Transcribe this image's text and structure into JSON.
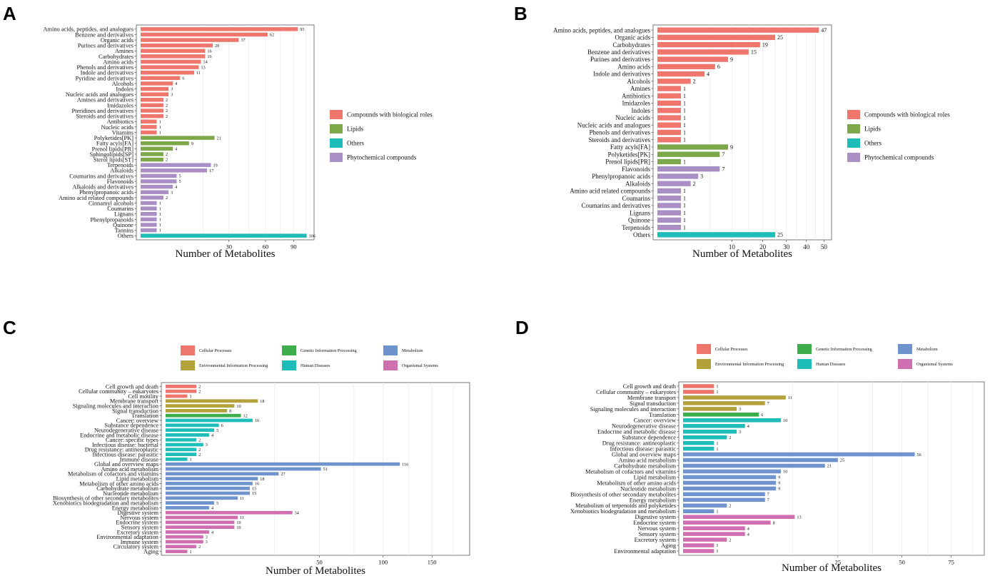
{
  "colors": {
    "compounds": "#EE766C",
    "lipids": "#7CA84A",
    "others": "#1FBDB9",
    "phyto": "#A98FC4",
    "cellular": "#EE766C",
    "environmental": "#B3A23A",
    "genetic": "#3DAE4B",
    "human": "#1FBDB9",
    "metabolism": "#6E93CD",
    "organismal": "#CF6FB0"
  },
  "chart_data": [
    {
      "panel": "A",
      "type": "bar",
      "orientation": "horizontal",
      "xlabel": "Number of Metabolites",
      "x_scale": "sqrt",
      "xlim": [
        0,
        110
      ],
      "xticks": [
        "30",
        "60",
        "90"
      ],
      "legend": [
        {
          "label": "Compounds with biological roles",
          "group": "compounds"
        },
        {
          "label": "Lipids",
          "group": "lipids"
        },
        {
          "label": "Others",
          "group": "others"
        },
        {
          "label": "Phytochemical compounds",
          "group": "phyto"
        }
      ],
      "bars": [
        {
          "label": "Amino acids, peptides, and analogues",
          "value": 95,
          "group": "compounds"
        },
        {
          "label": "Benzene and derivatives",
          "value": 62,
          "group": "compounds"
        },
        {
          "label": "Organic acids",
          "value": 37,
          "group": "compounds"
        },
        {
          "label": "Purines and derivatives",
          "value": 20,
          "group": "compounds"
        },
        {
          "label": "Amines",
          "value": 16,
          "group": "compounds"
        },
        {
          "label": "Carbohydrates",
          "value": 16,
          "group": "compounds"
        },
        {
          "label": "Amino acids",
          "value": 14,
          "group": "compounds"
        },
        {
          "label": "Phenols and derivatives",
          "value": 13,
          "group": "compounds"
        },
        {
          "label": "Indole and derivatives",
          "value": 11,
          "group": "compounds"
        },
        {
          "label": "Pyridine and derivatives",
          "value": 6,
          "group": "compounds"
        },
        {
          "label": "Alcohols",
          "value": 4,
          "group": "compounds"
        },
        {
          "label": "Indoles",
          "value": 3,
          "group": "compounds"
        },
        {
          "label": "Nucleic acids and analogues",
          "value": 3,
          "group": "compounds"
        },
        {
          "label": "Amines and derivatives",
          "value": 2,
          "group": "compounds"
        },
        {
          "label": "Imidazoles",
          "value": 2,
          "group": "compounds"
        },
        {
          "label": "Pteridines and derivatives",
          "value": 2,
          "group": "compounds"
        },
        {
          "label": "Steroids and derivatives",
          "value": 2,
          "group": "compounds"
        },
        {
          "label": "Antibiotics",
          "value": 1,
          "group": "compounds"
        },
        {
          "label": "Nucleic acids",
          "value": 1,
          "group": "compounds"
        },
        {
          "label": "Vitamins",
          "value": 1,
          "group": "compounds"
        },
        {
          "label": "Polyketides[PK]",
          "value": 21,
          "group": "lipids"
        },
        {
          "label": "Fatty acyls[FA]",
          "value": 9,
          "group": "lipids"
        },
        {
          "label": "Prenol lipids[PR]",
          "value": 4,
          "group": "lipids"
        },
        {
          "label": "Sphingolipids[SP]",
          "value": 2,
          "group": "lipids"
        },
        {
          "label": "Sterol lipids[ST]",
          "value": 2,
          "group": "lipids"
        },
        {
          "label": "Terpenoids",
          "value": 19,
          "group": "phyto"
        },
        {
          "label": "Alkaloids",
          "value": 17,
          "group": "phyto"
        },
        {
          "label": "Coumarins and derivatives",
          "value": 5,
          "group": "phyto"
        },
        {
          "label": "Flavonoids",
          "value": 5,
          "group": "phyto"
        },
        {
          "label": "Alkaloids and derivatives",
          "value": 4,
          "group": "phyto"
        },
        {
          "label": "Phenylpropanoic acids",
          "value": 3,
          "group": "phyto"
        },
        {
          "label": "Amino acid related compounds",
          "value": 2,
          "group": "phyto"
        },
        {
          "label": "Cinnamyl alcohols",
          "value": 1,
          "group": "phyto"
        },
        {
          "label": "Coumarins",
          "value": 1,
          "group": "phyto"
        },
        {
          "label": "Lignans",
          "value": 1,
          "group": "phyto"
        },
        {
          "label": "Phenylpropanoids",
          "value": 1,
          "group": "phyto"
        },
        {
          "label": "Quinone",
          "value": 1,
          "group": "phyto"
        },
        {
          "label": "Tannins",
          "value": 1,
          "group": "phyto"
        },
        {
          "label": "Others",
          "value": 106,
          "group": "others"
        }
      ]
    },
    {
      "panel": "B",
      "type": "bar",
      "orientation": "horizontal",
      "xlabel": "Number of Metabolites",
      "x_scale": "sqrt",
      "xlim": [
        0,
        52
      ],
      "xticks": [
        "10",
        "20",
        "30",
        "40",
        "50"
      ],
      "legend": [
        {
          "label": "Compounds with biological roles",
          "group": "compounds"
        },
        {
          "label": "Lipids",
          "group": "lipids"
        },
        {
          "label": "Others",
          "group": "others"
        },
        {
          "label": "Phytochemical compounds",
          "group": "phyto"
        }
      ],
      "bars": [
        {
          "label": "Amino acids, peptides, and analogues",
          "value": 47,
          "group": "compounds"
        },
        {
          "label": "Organic acids",
          "value": 25,
          "group": "compounds"
        },
        {
          "label": "Carbohydrates",
          "value": 19,
          "group": "compounds"
        },
        {
          "label": "Benzene and derivatives",
          "value": 15,
          "group": "compounds"
        },
        {
          "label": "Purines and derivatives",
          "value": 9,
          "group": "compounds"
        },
        {
          "label": "Amino acids",
          "value": 6,
          "group": "compounds"
        },
        {
          "label": "Indole and derivatives",
          "value": 4,
          "group": "compounds"
        },
        {
          "label": "Alcohols",
          "value": 2,
          "group": "compounds"
        },
        {
          "label": "Amines",
          "value": 1,
          "group": "compounds"
        },
        {
          "label": "Antibiotics",
          "value": 1,
          "group": "compounds"
        },
        {
          "label": "Imidazoles",
          "value": 1,
          "group": "compounds"
        },
        {
          "label": "Indoles",
          "value": 1,
          "group": "compounds"
        },
        {
          "label": "Nucleic acids",
          "value": 1,
          "group": "compounds"
        },
        {
          "label": "Nucleic acids and analogues",
          "value": 1,
          "group": "compounds"
        },
        {
          "label": "Phenols and derivatives",
          "value": 1,
          "group": "compounds"
        },
        {
          "label": "Steroids and derivatives",
          "value": 1,
          "group": "compounds"
        },
        {
          "label": "Fatty acyls[FA]",
          "value": 9,
          "group": "lipids"
        },
        {
          "label": "Polyketides[PK]",
          "value": 7,
          "group": "lipids"
        },
        {
          "label": "Prenol lipids[PR]",
          "value": 1,
          "group": "lipids"
        },
        {
          "label": "Flavonoids",
          "value": 7,
          "group": "phyto"
        },
        {
          "label": "Phenylpropanoic acids",
          "value": 3,
          "group": "phyto"
        },
        {
          "label": "Alkaloids",
          "value": 2,
          "group": "phyto"
        },
        {
          "label": "Amino acid related compounds",
          "value": 1,
          "group": "phyto"
        },
        {
          "label": "Coumarins",
          "value": 1,
          "group": "phyto"
        },
        {
          "label": "Coumarins and derivatives",
          "value": 1,
          "group": "phyto"
        },
        {
          "label": "Lignans",
          "value": 1,
          "group": "phyto"
        },
        {
          "label": "Quinone",
          "value": 1,
          "group": "phyto"
        },
        {
          "label": "Terpenoids",
          "value": 1,
          "group": "phyto"
        },
        {
          "label": "Others",
          "value": 25,
          "group": "others"
        }
      ]
    },
    {
      "panel": "C",
      "type": "bar",
      "orientation": "horizontal",
      "xlabel": "Number of Metabolites",
      "x_scale": "sqrt",
      "xlim": [
        0,
        190
      ],
      "xticks": [
        "50",
        "100",
        "150"
      ],
      "legend": [
        {
          "label": "Cellular Processes",
          "group": "cellular"
        },
        {
          "label": "Genetic Information Processing",
          "group": "genetic"
        },
        {
          "label": "Metabolism",
          "group": "metabolism"
        },
        {
          "label": "Environmental Information Processing",
          "group": "environmental"
        },
        {
          "label": "Human Diseases",
          "group": "human"
        },
        {
          "label": "Organismal Systems",
          "group": "organismal"
        }
      ],
      "bars": [
        {
          "label": "Cell growth and death",
          "value": 2,
          "group": "cellular"
        },
        {
          "label": "Cellular community – eukaryotes",
          "value": 2,
          "group": "cellular"
        },
        {
          "label": "Cell motility",
          "value": 1,
          "group": "cellular"
        },
        {
          "label": "Membrane transport",
          "value": 18,
          "group": "environmental"
        },
        {
          "label": "Signaling molecules and interaction",
          "value": 10,
          "group": "environmental"
        },
        {
          "label": "Signal transduction",
          "value": 8,
          "group": "environmental"
        },
        {
          "label": "Translation",
          "value": 12,
          "group": "genetic"
        },
        {
          "label": "Cancer: overview",
          "value": 16,
          "group": "human"
        },
        {
          "label": "Substance dependence",
          "value": 6,
          "group": "human"
        },
        {
          "label": "Neurodegenerative disease",
          "value": 5,
          "group": "human"
        },
        {
          "label": "Endocrine and metabolic disease",
          "value": 4,
          "group": "human"
        },
        {
          "label": "Cancer: specific types",
          "value": 2,
          "group": "human"
        },
        {
          "label": "Infectious disease: bacterial",
          "value": 3,
          "group": "human"
        },
        {
          "label": "Drug resistance: antineoplastic",
          "value": 2,
          "group": "human"
        },
        {
          "label": "Infectious disease: parasitic",
          "value": 2,
          "group": "human"
        },
        {
          "label": "Immune disease",
          "value": 1,
          "group": "human"
        },
        {
          "label": "Global and overview maps",
          "value": 116,
          "group": "metabolism"
        },
        {
          "label": "Amino acid metabolism",
          "value": 51,
          "group": "metabolism"
        },
        {
          "label": "Metabolism of cofactors and vitamins",
          "value": 27,
          "group": "metabolism"
        },
        {
          "label": "Lipid metabolism",
          "value": 18,
          "group": "metabolism"
        },
        {
          "label": "Metabolism of other amino acids",
          "value": 16,
          "group": "metabolism"
        },
        {
          "label": "Carbohydrate metabolism",
          "value": 15,
          "group": "metabolism"
        },
        {
          "label": "Nucleotide metabolism",
          "value": 15,
          "group": "metabolism"
        },
        {
          "label": "Biosynthesis of other secondary metabolites",
          "value": 11,
          "group": "metabolism"
        },
        {
          "label": "Xenobiotics biodegradation and metabolism",
          "value": 5,
          "group": "metabolism"
        },
        {
          "label": "Energy metabolism",
          "value": 4,
          "group": "metabolism"
        },
        {
          "label": "Digestive system",
          "value": 34,
          "group": "organismal"
        },
        {
          "label": "Nervous system",
          "value": 11,
          "group": "organismal"
        },
        {
          "label": "Endocrine system",
          "value": 10,
          "group": "organismal"
        },
        {
          "label": "Sensory system",
          "value": 10,
          "group": "organismal"
        },
        {
          "label": "Excretory system",
          "value": 4,
          "group": "organismal"
        },
        {
          "label": "Environmental adaptation",
          "value": 3,
          "group": "organismal"
        },
        {
          "label": "Immune system",
          "value": 3,
          "group": "organismal"
        },
        {
          "label": "Circulatory system",
          "value": 2,
          "group": "organismal"
        },
        {
          "label": "Aging",
          "value": 1,
          "group": "organismal"
        }
      ]
    },
    {
      "panel": "D",
      "type": "bar",
      "orientation": "horizontal",
      "xlabel": "Number of Metabolites",
      "x_scale": "sqrt",
      "xlim": [
        0,
        92
      ],
      "xticks": [
        "25",
        "50",
        "75"
      ],
      "legend": [
        {
          "label": "Cellular Processes",
          "group": "cellular"
        },
        {
          "label": "Genetic Information Processing",
          "group": "genetic"
        },
        {
          "label": "Metabolism",
          "group": "metabolism"
        },
        {
          "label": "Environmental Information Processing",
          "group": "environmental"
        },
        {
          "label": "Human Diseases",
          "group": "human"
        },
        {
          "label": "Organismal Systems",
          "group": "organismal"
        }
      ],
      "bars": [
        {
          "label": "Cell growth and death",
          "value": 1,
          "group": "cellular"
        },
        {
          "label": "Cellular community – eukaryotes",
          "value": 1,
          "group": "cellular"
        },
        {
          "label": "Membrane transport",
          "value": 11,
          "group": "environmental"
        },
        {
          "label": "Signal transduction",
          "value": 7,
          "group": "environmental"
        },
        {
          "label": "Signaling molecules and interaction",
          "value": 3,
          "group": "environmental"
        },
        {
          "label": "Translation",
          "value": 6,
          "group": "genetic"
        },
        {
          "label": "Cancer: overview",
          "value": 10,
          "group": "human"
        },
        {
          "label": "Neurodegenerative disease",
          "value": 4,
          "group": "human"
        },
        {
          "label": "Endocrine and metabolic disease",
          "value": 3,
          "group": "human"
        },
        {
          "label": "Substance dependence",
          "value": 2,
          "group": "human"
        },
        {
          "label": "Drug resistance: antineoplastic",
          "value": 1,
          "group": "human"
        },
        {
          "label": "Infectious disease: parasitic",
          "value": 1,
          "group": "human"
        },
        {
          "label": "Global and overview maps",
          "value": 56,
          "group": "metabolism"
        },
        {
          "label": "Amino acid metabolism",
          "value": 25,
          "group": "metabolism"
        },
        {
          "label": "Carbohydrate metabolism",
          "value": 21,
          "group": "metabolism"
        },
        {
          "label": "Metabolism of cofactors and vitamins",
          "value": 10,
          "group": "metabolism"
        },
        {
          "label": "Lipid metabolism",
          "value": 9,
          "group": "metabolism"
        },
        {
          "label": "Metabolism of other amino acids",
          "value": 9,
          "group": "metabolism"
        },
        {
          "label": "Nucleotide metabolism",
          "value": 9,
          "group": "metabolism"
        },
        {
          "label": "Biosynthesis of other secondary metabolites",
          "value": 7,
          "group": "metabolism"
        },
        {
          "label": "Energy metabolism",
          "value": 7,
          "group": "metabolism"
        },
        {
          "label": "Metabolism of terpenoids and polyketides",
          "value": 2,
          "group": "metabolism"
        },
        {
          "label": "Xenobiotics biodegradation and metabolism",
          "value": 1,
          "group": "metabolism"
        },
        {
          "label": "Digestive system",
          "value": 13,
          "group": "organismal"
        },
        {
          "label": "Endocrine system",
          "value": 8,
          "group": "organismal"
        },
        {
          "label": "Nervous system",
          "value": 4,
          "group": "organismal"
        },
        {
          "label": "Sensory system",
          "value": 4,
          "group": "organismal"
        },
        {
          "label": "Excretory system",
          "value": 2,
          "group": "organismal"
        },
        {
          "label": "Aging",
          "value": 1,
          "group": "organismal"
        },
        {
          "label": "Environmental adaptation",
          "value": 1,
          "group": "organismal"
        }
      ]
    }
  ]
}
